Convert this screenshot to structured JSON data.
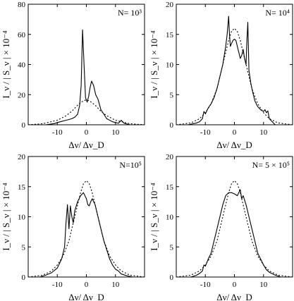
{
  "chart_data": [
    {
      "type": "line",
      "annotation": "N= 10³",
      "xlabel": "Δν/ Δν_D",
      "ylabel": "I_ν / | S_ν | × 10⁻⁴",
      "xlim": [
        -20,
        20
      ],
      "ylim": [
        0,
        80
      ],
      "xticks": [
        "-10",
        "0",
        "10"
      ],
      "yticks": [
        "0",
        "20",
        "40",
        "60",
        "80"
      ],
      "grid": false,
      "series": [
        {
          "style": "solid",
          "x": [
            -20,
            -14,
            -11,
            -9,
            -7,
            -5,
            -4,
            -3,
            -2.3,
            -1.8,
            -1.3,
            -0.8,
            -0.3,
            0.3,
            0.8,
            1.3,
            1.8,
            2.5,
            3.2,
            4,
            5,
            6,
            7,
            9,
            11,
            12,
            13,
            15,
            20
          ],
          "y": [
            0,
            0,
            0.8,
            2,
            3,
            4,
            5,
            7,
            13,
            26,
            63,
            40,
            18,
            15,
            19,
            25,
            29,
            26,
            20,
            17,
            10,
            7,
            4,
            2,
            1,
            3,
            1,
            0,
            0
          ]
        },
        {
          "style": "dotted",
          "x": [
            -20,
            -15,
            -10,
            -7,
            -5,
            -3,
            -1,
            0,
            1,
            3,
            5,
            7,
            10,
            15,
            20
          ],
          "y": [
            0,
            0.7,
            3,
            6,
            9,
            13,
            16,
            16.5,
            16,
            13,
            9,
            6,
            3,
            0.7,
            0
          ]
        }
      ]
    },
    {
      "type": "line",
      "annotation": "N= 10⁴",
      "xlabel": "Δν/ Δν_D",
      "ylabel": "I_ν / | S_ν | × 10⁻⁴",
      "xlim": [
        -20,
        20
      ],
      "ylim": [
        0,
        20
      ],
      "xticks": [
        "-10",
        "0",
        "10"
      ],
      "yticks": [
        "0",
        "5",
        "10",
        "15",
        "20"
      ],
      "grid": false,
      "series": [
        {
          "style": "solid",
          "x": [
            -20,
            -16,
            -13,
            -12,
            -11,
            -10.5,
            -10,
            -9.5,
            -9,
            -8,
            -7,
            -6,
            -5,
            -4,
            -3,
            -2.5,
            -2,
            -1.7,
            -1.4,
            -1,
            -0.5,
            0,
            0.5,
            1,
            1.5,
            2,
            2.5,
            3,
            3.5,
            4,
            4.3,
            4.6,
            4.8,
            5,
            5.3,
            5.6,
            6,
            6.5,
            7,
            7.5,
            8,
            9,
            10,
            10.5,
            11,
            11.5,
            12,
            13,
            14,
            16,
            20
          ],
          "y": [
            0,
            0,
            0.3,
            0.5,
            1,
            2.2,
            1.8,
            2.3,
            2.8,
            3.5,
            4.5,
            6,
            8,
            10,
            13,
            15,
            18,
            15,
            13,
            13.5,
            14,
            14.2,
            14,
            13,
            12,
            11,
            11.5,
            12.5,
            11,
            10,
            14,
            17,
            13,
            9,
            8,
            7,
            6,
            5,
            4,
            3.5,
            3,
            2.5,
            2.2,
            2.5,
            2,
            2.3,
            1,
            0.5,
            0,
            0,
            0
          ]
        },
        {
          "style": "dotted",
          "x": [
            -20,
            -15,
            -12,
            -10,
            -8,
            -6,
            -4,
            -2,
            -1,
            0,
            1,
            2,
            4,
            6,
            8,
            10,
            12,
            15,
            20
          ],
          "y": [
            0,
            0.3,
            1,
            2,
            3.5,
            6,
            10,
            14,
            15.5,
            16,
            15.5,
            14,
            10,
            6,
            3.5,
            2,
            1,
            0.3,
            0
          ]
        }
      ]
    },
    {
      "type": "line",
      "annotation": "N=10⁵",
      "xlabel": "Δν/ Δν_D",
      "ylabel": "I_ν / | S_ν | × 10⁻⁴",
      "xlim": [
        -20,
        20
      ],
      "ylim": [
        0,
        20
      ],
      "xticks": [
        "-10",
        "0",
        "10"
      ],
      "yticks": [
        "0",
        "5",
        "10",
        "15",
        "20"
      ],
      "grid": false,
      "series": [
        {
          "style": "solid",
          "x": [
            -20,
            -16,
            -14,
            -12,
            -10,
            -8.5,
            -7.5,
            -7,
            -6.5,
            -6,
            -5.5,
            -5,
            -4.5,
            -4,
            -3,
            -2,
            -1,
            0,
            0.5,
            1,
            1.5,
            2,
            3,
            4,
            5,
            6,
            7,
            8,
            9,
            10,
            11,
            12,
            14,
            16,
            20
          ],
          "y": [
            0,
            0,
            0.3,
            0.7,
            1.5,
            3,
            5,
            9,
            12,
            8,
            11.8,
            10,
            9,
            11,
            12.5,
            13.5,
            14,
            13,
            12,
            11.8,
            12.5,
            13,
            12,
            10,
            8,
            6,
            4.5,
            3,
            2,
            1.3,
            1,
            0.5,
            0.2,
            0,
            0
          ]
        },
        {
          "style": "dotted",
          "x": [
            -20,
            -15,
            -12,
            -10,
            -8,
            -6,
            -4,
            -2,
            -1,
            0,
            1,
            2,
            4,
            6,
            8,
            10,
            12,
            15,
            20
          ],
          "y": [
            0,
            0.3,
            1,
            2,
            3.5,
            6,
            10,
            14,
            15.5,
            16,
            15.5,
            14,
            10,
            6,
            3.5,
            2,
            1,
            0.3,
            0
          ]
        }
      ]
    },
    {
      "type": "line",
      "annotation": "N= 5 × 10⁵",
      "xlabel": "Δν/ Δν_D",
      "ylabel": "I_ν / | S_ν | × 10⁻⁴",
      "xlim": [
        -20,
        20
      ],
      "ylim": [
        0,
        20
      ],
      "xticks": [
        "-10",
        "0",
        "10"
      ],
      "yticks": [
        "0",
        "5",
        "10",
        "15",
        "20"
      ],
      "grid": false,
      "series": [
        {
          "style": "solid",
          "x": [
            -20,
            -15,
            -13,
            -12,
            -11,
            -10.5,
            -10,
            -9,
            -8,
            -7,
            -6,
            -5,
            -4,
            -3,
            -2,
            -1,
            0,
            1,
            1.5,
            2,
            2.5,
            3,
            4,
            5,
            6,
            7,
            8,
            9,
            10,
            11,
            12,
            14,
            16,
            20
          ],
          "y": [
            0,
            0,
            0.3,
            0.6,
            1,
            2,
            1.8,
            3,
            4,
            6,
            8,
            10,
            12,
            13.5,
            14,
            14,
            13.8,
            13.5,
            14,
            14.5,
            13,
            13.5,
            12,
            10,
            8,
            6,
            4,
            3,
            2,
            1.2,
            0.8,
            0.3,
            0,
            0
          ]
        },
        {
          "style": "dotted",
          "x": [
            -20,
            -15,
            -12,
            -10,
            -8,
            -6,
            -4,
            -2,
            -1,
            0,
            1,
            2,
            4,
            6,
            8,
            10,
            12,
            15,
            20
          ],
          "y": [
            0,
            0.3,
            1,
            2,
            3.5,
            6,
            10,
            14,
            15.5,
            16,
            15.5,
            14,
            10,
            6,
            3.5,
            2,
            1,
            0.3,
            0
          ]
        }
      ]
    }
  ]
}
